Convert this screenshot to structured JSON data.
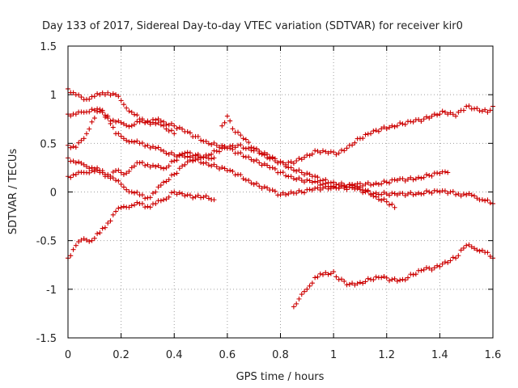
{
  "chart_data": {
    "type": "scatter",
    "title": "Day 133 of 2017, Sidereal Day-to-day VTEC variation (SDTVAR) for receiver kir0",
    "xlabel": "GPS time / hours",
    "ylabel": "SDTVAR / TECUs",
    "xlim": [
      0,
      1.6
    ],
    "ylim": [
      -1.5,
      1.5
    ],
    "xticks": [
      0,
      0.2,
      0.4,
      0.6,
      0.8,
      1,
      1.2,
      1.4,
      1.6
    ],
    "xtick_labels": [
      "0",
      "0.2",
      "0.4",
      "0.6",
      "0.8",
      "1",
      "1.2",
      "1.4",
      "1.6"
    ],
    "yticks": [
      -1.5,
      -1,
      -0.5,
      0,
      0.5,
      1,
      1.5
    ],
    "ytick_labels": [
      "-1.5",
      "-1",
      "-0.5",
      "0",
      "0.5",
      "1",
      "1.5"
    ],
    "grid": true,
    "marker": "+",
    "color": "#cc0000",
    "series": [
      {
        "name": "s1",
        "x": [
          0,
          0.03,
          0.06,
          0.09,
          0.12,
          0.15,
          0.18,
          0.21,
          0.24,
          0.27,
          0.3,
          0.33,
          0.36,
          0.4,
          0.44,
          0.48,
          0.52,
          0.56,
          0.6,
          0.64,
          0.68,
          0.72,
          0.76,
          0.8,
          0.84,
          0.88,
          0.92,
          0.96,
          1,
          1.04,
          1.08,
          1.12,
          1.16,
          1.2,
          1.24,
          1.28,
          1.32,
          1.36,
          1.4,
          1.44,
          1.47,
          1.5,
          1.53,
          1.56,
          1.6
        ],
        "y": [
          0.8,
          0.8,
          0.82,
          0.85,
          0.83,
          0.76,
          0.72,
          0.7,
          0.68,
          0.72,
          0.73,
          0.74,
          0.72,
          0.68,
          0.62,
          0.57,
          0.52,
          0.48,
          0.45,
          0.4,
          0.36,
          0.3,
          0.25,
          0.2,
          0.16,
          0.12,
          0.1,
          0.08,
          0.06,
          0.04,
          0.03,
          0.0,
          -0.01,
          -0.02,
          -0.03,
          -0.02,
          -0.01,
          0.0,
          0.0,
          0.0,
          -0.02,
          -0.03,
          -0.04,
          -0.08,
          -0.12
        ]
      },
      {
        "name": "s2",
        "x": [
          0,
          0.03,
          0.06,
          0.09,
          0.12,
          0.15,
          0.18,
          0.21,
          0.24,
          0.27,
          0.3,
          0.33,
          0.36,
          0.4,
          0.44,
          0.48,
          0.52,
          0.56,
          0.6,
          0.64,
          0.68,
          0.72,
          0.76,
          0.8,
          0.84,
          0.88,
          0.92,
          0.96,
          1,
          1.04,
          1.08,
          1.12,
          1.16,
          1.2,
          1.24,
          1.28,
          1.32,
          1.36,
          1.4,
          1.43
        ],
        "y": [
          0.48,
          0.46,
          0.55,
          0.72,
          0.85,
          0.78,
          0.6,
          0.55,
          0.52,
          0.5,
          0.48,
          0.45,
          0.42,
          0.38,
          0.36,
          0.33,
          0.3,
          0.26,
          0.22,
          0.18,
          0.12,
          0.06,
          0.02,
          -0.03,
          0.0,
          0.0,
          0.02,
          0.04,
          0.05,
          0.06,
          0.07,
          0.08,
          0.09,
          0.1,
          0.12,
          0.13,
          0.15,
          0.17,
          0.19,
          0.2
        ]
      },
      {
        "name": "s3",
        "x": [
          0,
          0.03,
          0.06,
          0.09,
          0.12,
          0.15,
          0.18,
          0.21,
          0.24,
          0.27,
          0.3,
          0.33,
          0.36,
          0.4,
          0.44,
          0.48,
          0.52,
          0.56,
          0.6,
          0.64,
          0.68,
          0.72,
          0.76,
          0.8,
          0.84,
          0.88,
          0.92,
          0.96,
          1,
          1.04,
          1.08,
          1.12,
          1.16,
          1.2,
          1.23
        ],
        "y": [
          0.35,
          0.3,
          0.28,
          0.25,
          0.22,
          0.18,
          0.12,
          0.05,
          0.0,
          -0.03,
          -0.06,
          0.0,
          0.1,
          0.18,
          0.28,
          0.35,
          0.38,
          0.42,
          0.45,
          0.48,
          0.45,
          0.42,
          0.36,
          0.3,
          0.25,
          0.2,
          0.16,
          0.12,
          0.1,
          0.07,
          0.05,
          0.02,
          -0.05,
          -0.1,
          -0.16
        ]
      },
      {
        "name": "s4",
        "x": [
          0,
          0.03,
          0.06,
          0.09,
          0.12,
          0.15,
          0.18,
          0.21,
          0.24,
          0.27,
          0.3,
          0.33,
          0.36,
          0.4,
          0.44,
          0.48,
          0.52,
          0.55
        ],
        "y": [
          0.16,
          0.18,
          0.2,
          0.22,
          0.2,
          0.16,
          0.22,
          0.18,
          0.25,
          0.3,
          0.28,
          0.26,
          0.24,
          0.32,
          0.4,
          0.38,
          0.36,
          0.35
        ]
      },
      {
        "name": "s5",
        "x": [
          0,
          0.03,
          0.06,
          0.09,
          0.12,
          0.15,
          0.18,
          0.21,
          0.24,
          0.27,
          0.3,
          0.33,
          0.36,
          0.4,
          0.44,
          0.48,
          0.52,
          0.55
        ],
        "y": [
          -0.68,
          -0.55,
          -0.48,
          -0.5,
          -0.42,
          -0.32,
          -0.2,
          -0.15,
          -0.14,
          -0.12,
          -0.15,
          -0.12,
          -0.08,
          0.0,
          -0.04,
          -0.05,
          -0.04,
          -0.08
        ]
      },
      {
        "name": "s6",
        "x": [
          0,
          0.03,
          0.06,
          0.09,
          0.12,
          0.15,
          0.18,
          0.21,
          0.24,
          0.27,
          0.3,
          0.33,
          0.36,
          0.4
        ],
        "y": [
          1.06,
          1.0,
          0.95,
          0.98,
          1.0,
          1.02,
          1.0,
          0.9,
          0.82,
          0.75,
          0.72,
          0.7,
          0.68,
          0.6
        ]
      },
      {
        "name": "s7",
        "x": [
          0.58,
          0.6,
          0.62,
          0.66,
          0.7,
          0.74,
          0.78,
          0.82,
          0.86,
          0.9,
          0.94,
          0.98,
          1.02,
          1.06,
          1.1,
          1.14,
          1.18,
          1.22,
          1.26,
          1.3,
          1.34,
          1.38,
          1.42,
          1.46,
          1.5,
          1.54,
          1.58,
          1.6
        ],
        "y": [
          0.68,
          0.78,
          0.65,
          0.55,
          0.45,
          0.38,
          0.32,
          0.28,
          0.32,
          0.38,
          0.42,
          0.4,
          0.4,
          0.48,
          0.55,
          0.6,
          0.65,
          0.68,
          0.7,
          0.72,
          0.75,
          0.8,
          0.82,
          0.78,
          0.88,
          0.86,
          0.82,
          0.88
        ]
      },
      {
        "name": "s8",
        "x": [
          0.85,
          0.87,
          0.9,
          0.93,
          0.96,
          1,
          1.02,
          1.06,
          1.1,
          1.14,
          1.18,
          1.22,
          1.26,
          1.3,
          1.34,
          1.38,
          1.42,
          1.46,
          1.5,
          1.53,
          1.56,
          1.6
        ],
        "y": [
          -1.18,
          -1.1,
          -1.0,
          -0.88,
          -0.85,
          -0.82,
          -0.9,
          -0.95,
          -0.93,
          -0.9,
          -0.88,
          -0.9,
          -0.9,
          -0.85,
          -0.8,
          -0.78,
          -0.72,
          -0.68,
          -0.55,
          -0.58,
          -0.6,
          -0.68
        ]
      }
    ]
  }
}
